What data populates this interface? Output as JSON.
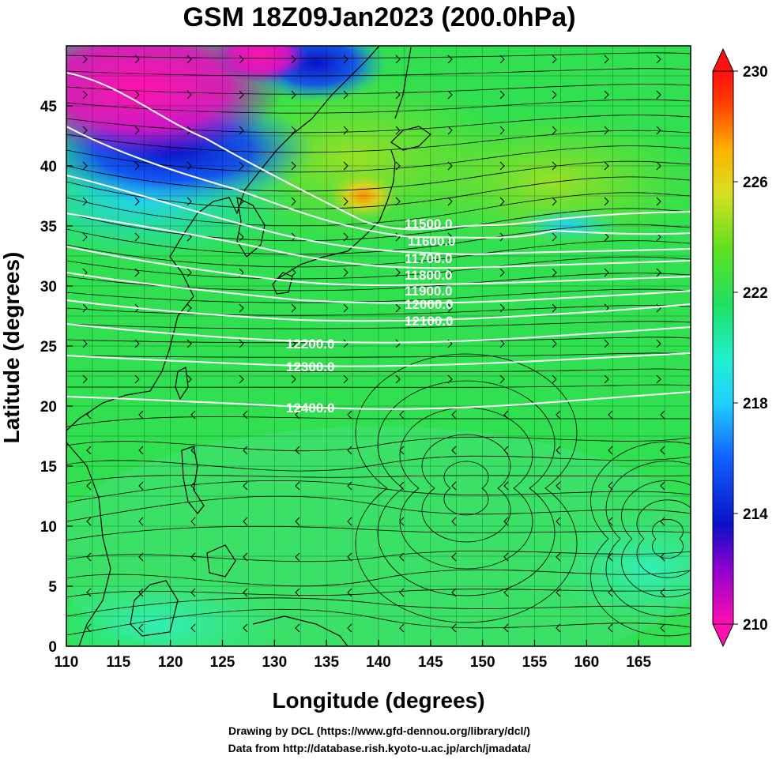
{
  "title": "GSM 18Z09Jan2023 (200.0hPa)",
  "x_axis": {
    "label": "Longitude (degrees)",
    "range": [
      110,
      170
    ],
    "ticks": [
      "110",
      "115",
      "120",
      "125",
      "130",
      "135",
      "140",
      "145",
      "150",
      "155",
      "160",
      "165"
    ]
  },
  "y_axis": {
    "label": "Latitude  (degrees)",
    "range": [
      0,
      50
    ],
    "ticks": [
      "0",
      "5",
      "10",
      "15",
      "20",
      "25",
      "30",
      "35",
      "40",
      "45"
    ]
  },
  "colorbar": {
    "range": [
      210,
      230
    ],
    "tick_labels": [
      "230",
      "226",
      "222",
      "218",
      "214",
      "210"
    ],
    "colors": [
      "#ff1aa6",
      "#8800cc",
      "#0a10c8",
      "#1060ff",
      "#20d0ff",
      "#20ffd0",
      "#20e060",
      "#60e020",
      "#d0e020",
      "#ffb000",
      "#ff4000",
      "#ff1010"
    ]
  },
  "contour_labels": [
    "11500.0",
    "11600.0",
    "11700.0",
    "11800.0",
    "11900.0",
    "12000.0",
    "12100.0",
    "12200.0",
    "12300.0",
    "12400.0"
  ],
  "credits": {
    "line1": "Drawing by DCL (https://www.gfd-dennou.org/library/dcl/)",
    "line2": "Data from http://database.rish.kyoto-u.ac.jp/arch/jmadata/"
  }
}
